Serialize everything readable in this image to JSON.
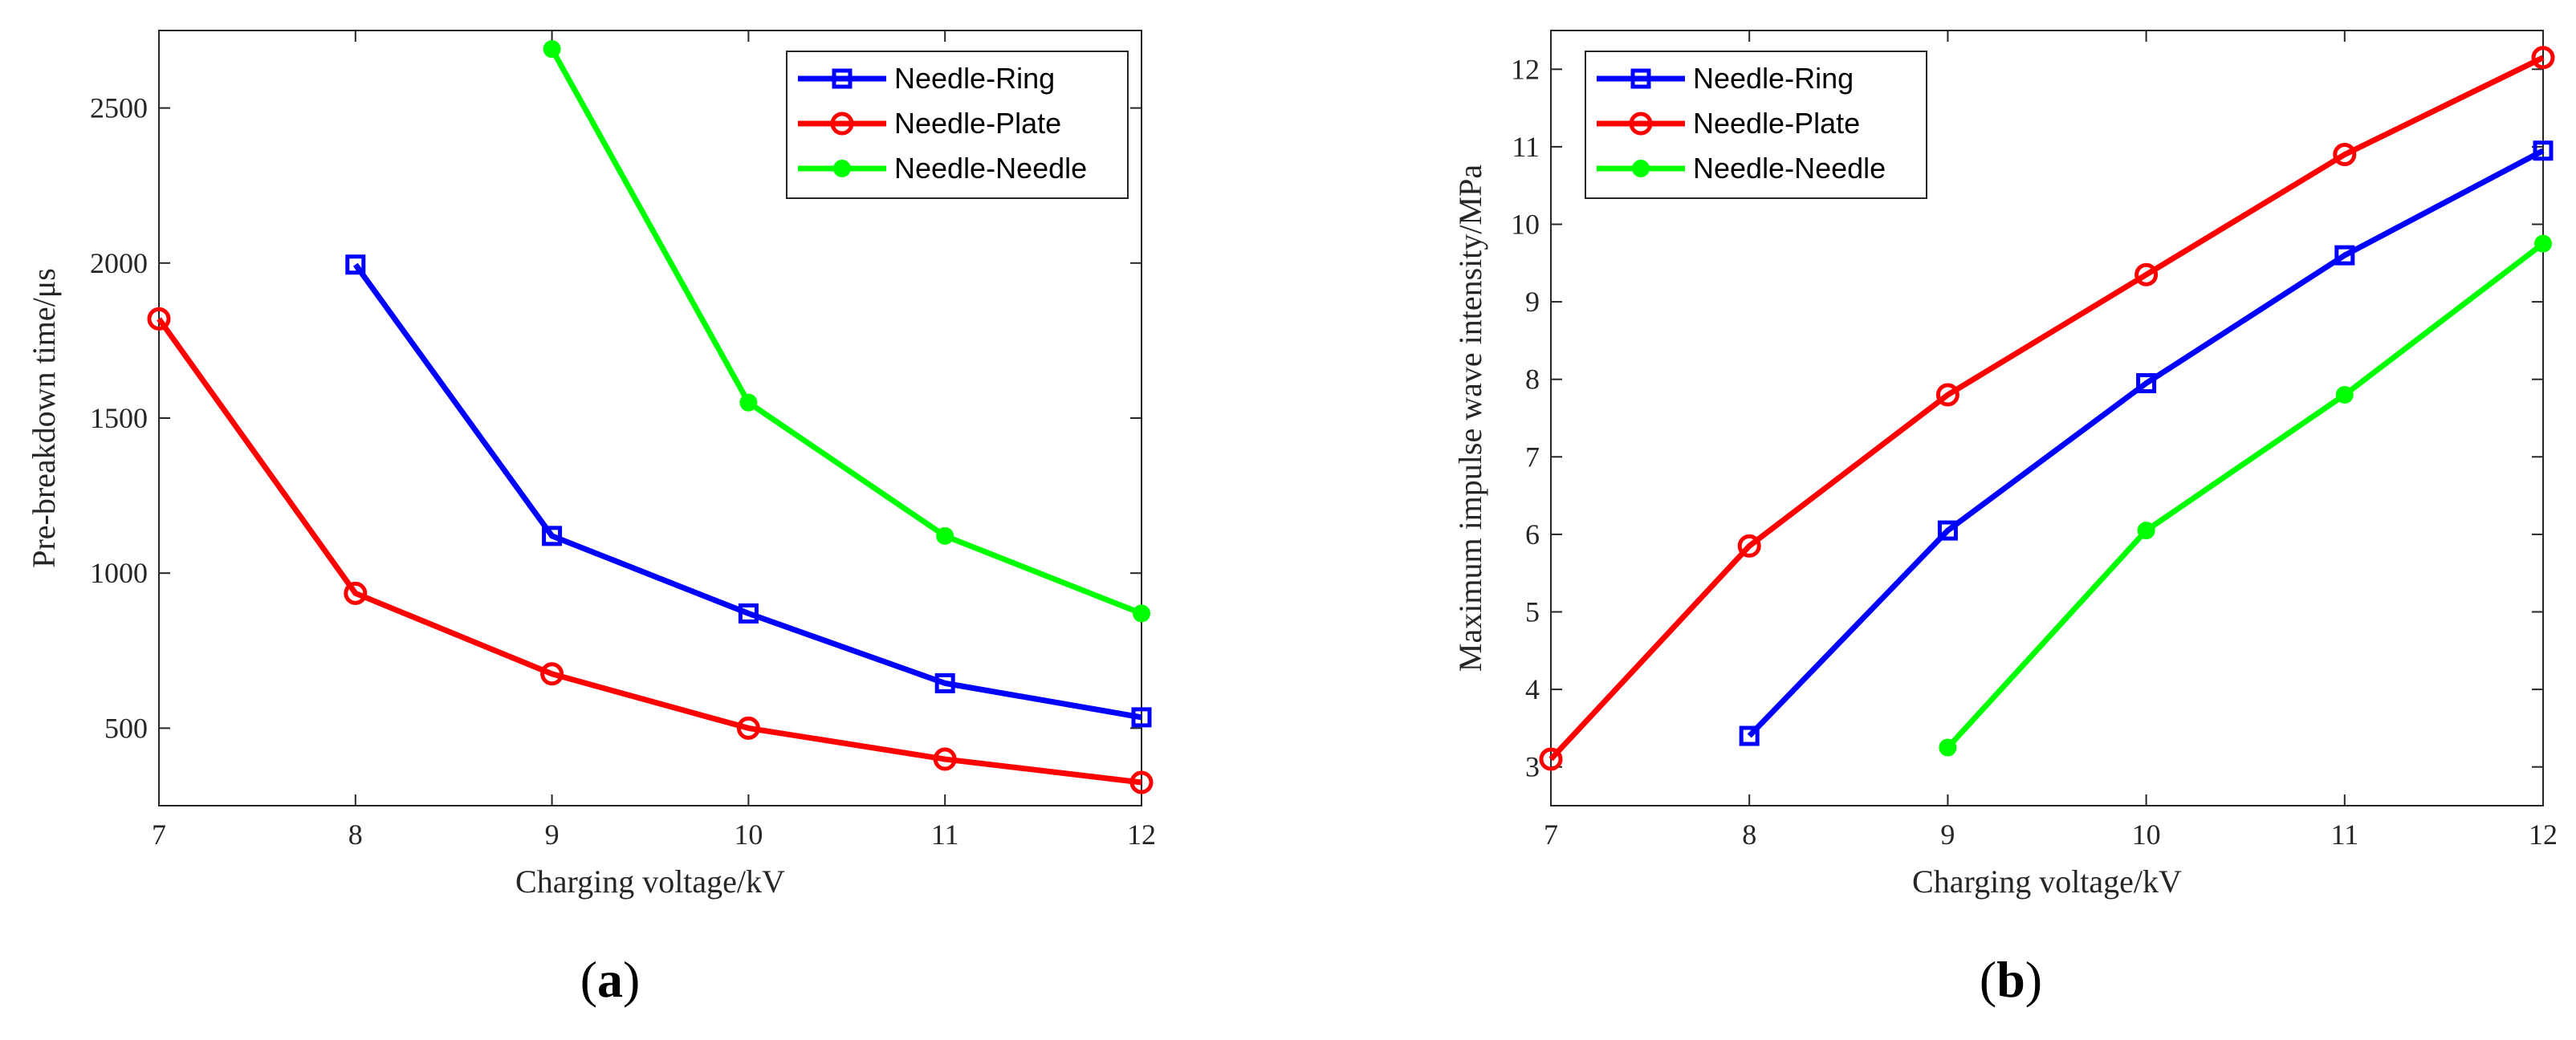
{
  "chart_data": [
    {
      "type": "line",
      "panel_label": "a",
      "title": "",
      "xlabel": "Charging voltage/kV",
      "ylabel": "Pre-breakdown time/μs",
      "xlim": [
        7,
        12
      ],
      "ylim": [
        250,
        2750
      ],
      "xticks": [
        7,
        8,
        9,
        10,
        11,
        12
      ],
      "yticks": [
        500,
        1000,
        1500,
        2000,
        2500
      ],
      "legend_position": "top-right",
      "series": [
        {
          "name": "Needle-Ring",
          "color": "#0000ff",
          "marker": "square",
          "x": [
            8,
            9,
            10,
            11,
            12
          ],
          "y": [
            1995,
            1120,
            870,
            645,
            535
          ]
        },
        {
          "name": "Needle-Plate",
          "color": "#ff0000",
          "marker": "circle",
          "x": [
            7,
            8,
            9,
            10,
            11,
            12
          ],
          "y": [
            1820,
            935,
            675,
            500,
            400,
            325
          ]
        },
        {
          "name": "Needle-Needle",
          "color": "#00ff00",
          "marker": "dot",
          "x": [
            9,
            10,
            11,
            12
          ],
          "y": [
            2690,
            1550,
            1120,
            870
          ]
        }
      ]
    },
    {
      "type": "line",
      "panel_label": "b",
      "title": "",
      "xlabel": "Charging voltage/kV",
      "ylabel": "Maximum impulse wave intensity/MPa",
      "xlim": [
        7,
        12
      ],
      "ylim": [
        2.5,
        12.5
      ],
      "xticks": [
        7,
        8,
        9,
        10,
        11,
        12
      ],
      "yticks": [
        3,
        4,
        5,
        6,
        7,
        8,
        9,
        10,
        11,
        12
      ],
      "legend_position": "top-left",
      "series": [
        {
          "name": "Needle-Ring",
          "color": "#0000ff",
          "marker": "square",
          "x": [
            8,
            9,
            10,
            11,
            12
          ],
          "y": [
            3.4,
            6.05,
            7.95,
            9.6,
            10.95
          ]
        },
        {
          "name": "Needle-Plate",
          "color": "#ff0000",
          "marker": "circle",
          "x": [
            7,
            8,
            9,
            10,
            11,
            12
          ],
          "y": [
            3.1,
            5.85,
            7.8,
            9.35,
            10.9,
            12.15
          ]
        },
        {
          "name": "Needle-Needle",
          "color": "#00ff00",
          "marker": "dot",
          "x": [
            9,
            10,
            11,
            12
          ],
          "y": [
            3.25,
            6.05,
            7.8,
            9.75
          ]
        }
      ]
    }
  ]
}
